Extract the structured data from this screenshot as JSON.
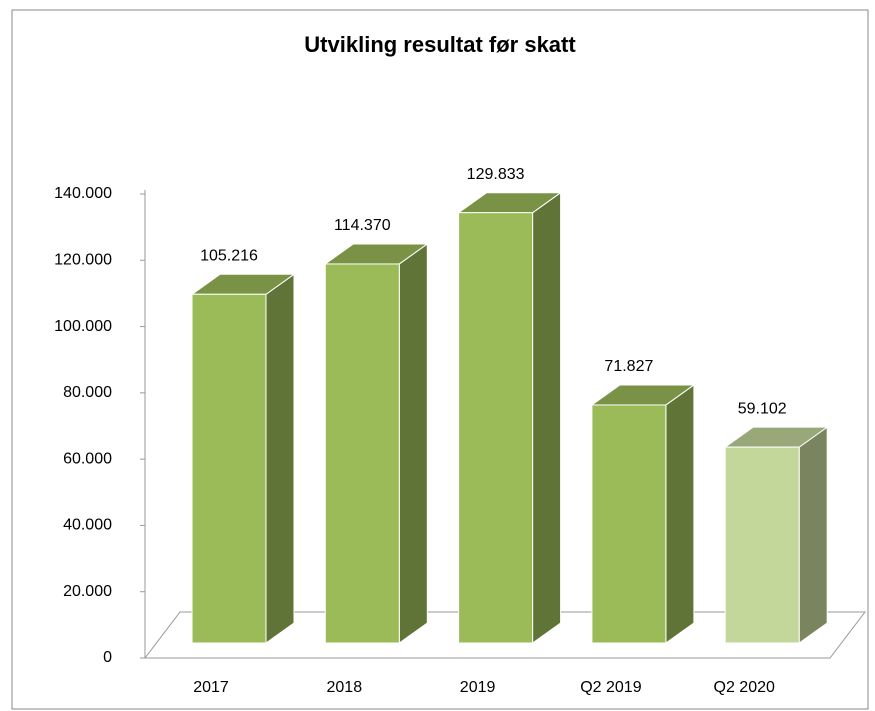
{
  "chart_data": {
    "type": "bar3d",
    "title": "Utvikling resultat før skatt",
    "categories": [
      "2017",
      "2018",
      "2019",
      "Q2 2019",
      "Q2 2020"
    ],
    "values": [
      105216,
      114370,
      129833,
      71827,
      59102
    ],
    "value_labels": [
      "105.216",
      "114.370",
      "129.833",
      "71.827",
      "59.102"
    ],
    "colors": [
      "#9bbb59",
      "#9bbb59",
      "#9bbb59",
      "#9bbb59",
      "#c4d79b"
    ],
    "ylim": [
      0,
      140000
    ],
    "yticks": [
      0,
      {
        "value": 20000,
        "label": "20.000"
      },
      {
        "value": 40000,
        "label": "40.000"
      },
      {
        "value": 60000,
        "label": "60.000"
      },
      {
        "value": 80000,
        "label": "80.000"
      },
      {
        "value": 100000,
        "label": "100.000"
      },
      {
        "value": 120000,
        "label": "120.000"
      },
      {
        "value": 140000,
        "label": "140.000"
      }
    ],
    "grid": false
  }
}
